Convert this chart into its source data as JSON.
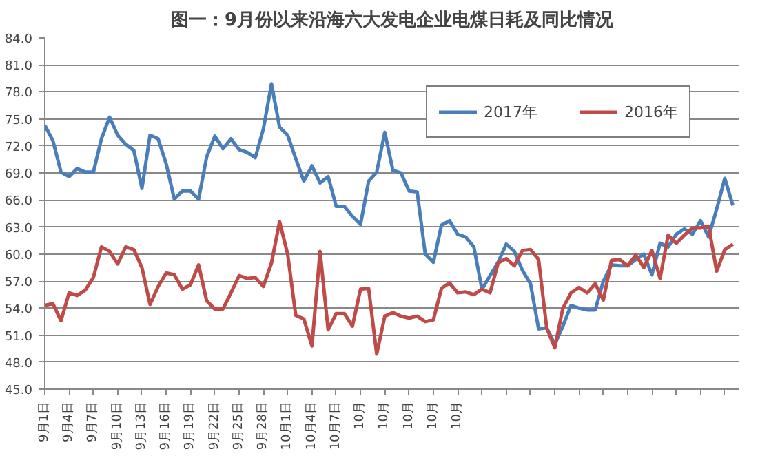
{
  "chart_data": {
    "type": "line",
    "title": "图一：9月份以来沿海六大发电企业电煤日耗及同比情况",
    "categories": [
      "9月1日",
      null,
      null,
      "9月4日",
      null,
      null,
      "9月7日",
      null,
      null,
      "9月10日",
      null,
      null,
      "9月13日",
      null,
      null,
      "9月16日",
      null,
      null,
      "9月19日",
      null,
      null,
      "9月22日",
      null,
      null,
      "9月25日",
      null,
      null,
      "9月28日",
      null,
      null,
      "10月1日",
      null,
      null,
      "10月4日",
      null,
      null,
      "10月7日",
      null,
      null,
      "10月",
      null,
      null,
      "10月",
      null,
      null,
      "10月",
      null,
      null,
      "10月",
      null,
      null,
      "10月",
      null,
      null,
      null,
      null,
      null,
      null,
      null,
      null,
      null,
      null,
      null,
      null,
      null,
      null,
      null,
      null,
      null,
      null,
      null,
      null,
      null,
      null,
      null,
      null,
      null,
      null,
      null,
      null,
      null,
      null,
      null,
      null,
      null,
      null
    ],
    "series": [
      {
        "name": "2017年",
        "color": "#4a7ebb",
        "values": [
          74.3,
          72.6,
          69.1,
          68.6,
          69.5,
          69.1,
          69.1,
          72.8,
          75.2,
          73.2,
          72.2,
          71.5,
          67.3,
          73.2,
          72.8,
          70.0,
          66.1,
          67.0,
          67.0,
          66.1,
          70.8,
          73.1,
          71.7,
          72.8,
          71.6,
          71.3,
          70.7,
          73.9,
          78.9,
          74.1,
          73.2,
          70.6,
          68.1,
          69.8,
          67.9,
          68.6,
          65.3,
          65.3,
          64.2,
          63.3,
          68.1,
          69.1,
          73.5,
          69.3,
          69.0,
          67.0,
          66.9,
          60.0,
          59.1,
          63.2,
          63.7,
          62.2,
          61.9,
          60.8,
          56.1,
          57.6,
          59.1,
          61.1,
          60.3,
          58.2,
          56.7,
          51.7,
          51.8,
          50.0,
          52.0,
          54.3,
          54.0,
          53.8,
          53.8,
          57.0,
          58.8,
          58.7,
          58.7,
          59.4,
          60.0,
          57.7,
          61.2,
          60.8,
          62.2,
          62.8,
          62.2,
          63.7,
          61.9,
          65.0,
          68.4,
          65.4
        ]
      },
      {
        "name": "2016年",
        "color": "#be4b48",
        "values": [
          54.3,
          54.5,
          52.6,
          55.7,
          55.4,
          56.0,
          57.4,
          60.8,
          60.3,
          58.9,
          60.8,
          60.5,
          58.5,
          54.4,
          56.4,
          57.9,
          57.7,
          56.1,
          56.6,
          58.8,
          54.8,
          53.9,
          53.9,
          55.7,
          57.6,
          57.3,
          57.4,
          56.4,
          59.0,
          63.6,
          60.0,
          53.2,
          52.8,
          49.8,
          60.3,
          51.6,
          53.4,
          53.4,
          52.0,
          56.1,
          56.2,
          48.9,
          53.1,
          53.5,
          53.1,
          52.9,
          53.1,
          52.5,
          52.7,
          56.2,
          56.8,
          55.7,
          55.8,
          55.5,
          56.1,
          55.7,
          59.0,
          59.5,
          58.7,
          60.4,
          60.5,
          59.4,
          51.8,
          49.6,
          54.0,
          55.7,
          56.3,
          55.7,
          56.7,
          54.9,
          59.3,
          59.4,
          58.7,
          59.9,
          58.5,
          60.4,
          57.3,
          62.1,
          61.2,
          62.1,
          62.9,
          62.9,
          63.1,
          58.1,
          60.5,
          61.1
        ]
      }
    ],
    "ylim": [
      45,
      84
    ],
    "yticks": [
      {
        "value": 45,
        "label": "45.0"
      },
      {
        "value": 48,
        "label": "48.0"
      },
      {
        "value": 51,
        "label": "51.0"
      },
      {
        "value": 54,
        "label": "54.0"
      },
      {
        "value": 57,
        "label": "57.0"
      },
      {
        "value": 60,
        "label": "60.0"
      },
      {
        "value": 63,
        "label": "63.0"
      },
      {
        "value": 66,
        "label": "66.0"
      },
      {
        "value": 69,
        "label": "69.0"
      },
      {
        "value": 72,
        "label": "72.0"
      },
      {
        "value": 75,
        "label": "75.0"
      },
      {
        "value": 78,
        "label": "78.0"
      },
      {
        "value": 81,
        "label": "81.0"
      },
      {
        "value": 84,
        "label": "84.0"
      }
    ],
    "grid": "y",
    "legend": "top right",
    "marker": "none",
    "line_style": "solid"
  }
}
